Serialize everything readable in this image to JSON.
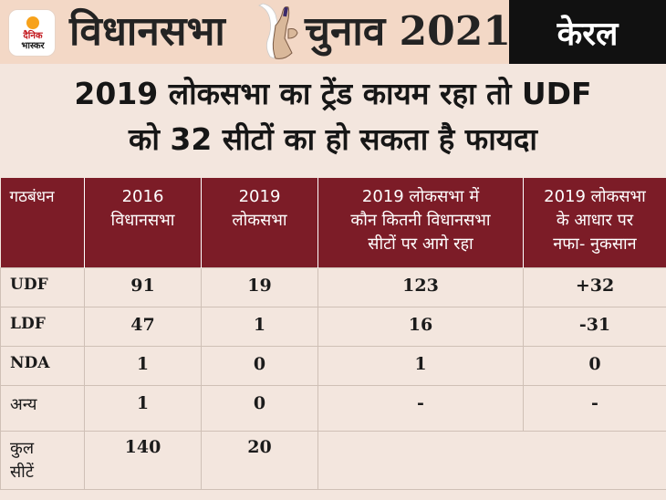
{
  "header": {
    "logo_line1": "दैनिक",
    "logo_line2": "भास्कर",
    "title_part1": "विधानसभा",
    "title_part2": "चुनाव 2021",
    "state": "केरल",
    "colors": {
      "header_bg": "#f3d8c6",
      "state_bg": "#111111",
      "table_header_bg": "#7c1c27"
    }
  },
  "headline": {
    "line1": "2019 लोकसभा का ट्रेंड कायम रहा तो UDF",
    "line2": "को 32 सीटों का हो सकता है फायदा"
  },
  "table": {
    "headers": [
      [
        "गठबंधन"
      ],
      [
        "2016",
        "विधानसभा"
      ],
      [
        "2019",
        "लोकसभा"
      ],
      [
        "2019 लोकसभा में",
        "कौन कितनी विधानसभा",
        "सीटों पर आगे रहा"
      ],
      [
        "2019 लोकसभा",
        "के आधार पर",
        "नफा- नुकसान"
      ]
    ],
    "rows": [
      {
        "name": "UDF",
        "v2016": "91",
        "v2019": "19",
        "lead": "123",
        "change": "+32"
      },
      {
        "name": "LDF",
        "v2016": "47",
        "v2019": "1",
        "lead": "16",
        "change": "-31"
      },
      {
        "name": "NDA",
        "v2016": "1",
        "v2019": "0",
        "lead": "1",
        "change": "0"
      },
      {
        "name": "अन्य",
        "v2016": "1",
        "v2019": "0",
        "lead": "-",
        "change": "-"
      }
    ],
    "total": {
      "name_line1": "कुल",
      "name_line2": "सीटें",
      "v2016": "140",
      "v2019": "20"
    }
  }
}
